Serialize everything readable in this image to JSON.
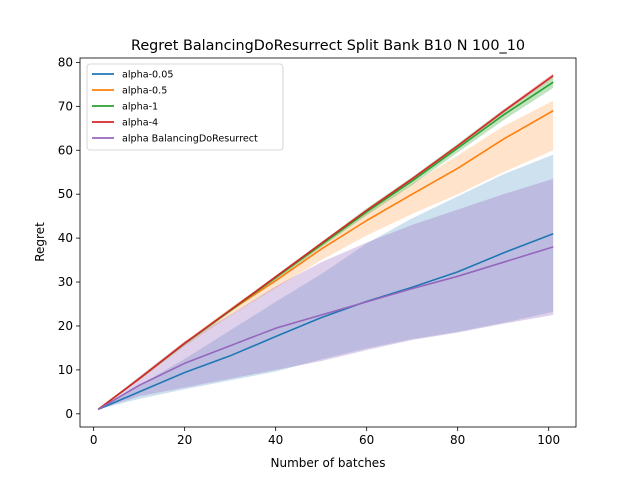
{
  "chart_data": {
    "type": "line",
    "title": "Regret BalancingDoResurrect Split Bank B10 N 100_10",
    "xlabel": "Number of batches",
    "ylabel": "Regret",
    "xlim": [
      -3.0,
      106.0
    ],
    "ylim": [
      -3.0,
      81.0
    ],
    "xticks": [
      0,
      20,
      40,
      60,
      80,
      100
    ],
    "yticks": [
      0,
      10,
      20,
      30,
      40,
      50,
      60,
      70,
      80
    ],
    "grid": false,
    "legend_position": "top-left",
    "series": [
      {
        "name": "alpha-0.05",
        "color": "#1f77b4",
        "band_opacity": 0.22,
        "x": [
          1,
          10,
          20,
          30,
          40,
          50,
          60,
          70,
          80,
          90,
          101
        ],
        "y": [
          1.0,
          5.0,
          9.4,
          13.2,
          17.6,
          21.9,
          25.6,
          28.8,
          32.3,
          36.6,
          41.0
        ],
        "lower": [
          1.0,
          3.4,
          5.6,
          7.6,
          9.6,
          12.4,
          14.9,
          17.0,
          18.7,
          20.7,
          23.2
        ],
        "upper": [
          1.0,
          6.5,
          12.5,
          19.0,
          25.5,
          31.8,
          38.8,
          44.5,
          49.5,
          54.5,
          59.0
        ]
      },
      {
        "name": "alpha-0.5",
        "color": "#ff7f0e",
        "band_opacity": 0.22,
        "x": [
          1,
          10,
          20,
          30,
          40,
          50,
          60,
          70,
          80,
          90,
          101
        ],
        "y": [
          1.0,
          8.0,
          16.0,
          23.5,
          30.3,
          37.5,
          44.0,
          50.0,
          55.9,
          62.5,
          69.0
        ],
        "lower": [
          1.0,
          7.6,
          15.4,
          22.3,
          28.6,
          35.0,
          40.6,
          45.5,
          50.0,
          55.0,
          60.0
        ],
        "upper": [
          1.0,
          8.3,
          16.5,
          24.1,
          31.2,
          38.6,
          45.8,
          52.4,
          58.8,
          65.4,
          71.3
        ]
      },
      {
        "name": "alpha-1",
        "color": "#2ca02c",
        "band_opacity": 0.3,
        "x": [
          1,
          10,
          20,
          30,
          40,
          50,
          60,
          70,
          80,
          90,
          101
        ],
        "y": [
          1.0,
          8.0,
          16.0,
          23.5,
          31.0,
          38.5,
          46.0,
          53.0,
          60.5,
          68.0,
          75.5
        ],
        "lower": [
          1.0,
          7.8,
          15.7,
          23.1,
          30.5,
          37.9,
          45.2,
          52.1,
          59.5,
          66.8,
          74.2
        ],
        "upper": [
          1.0,
          8.2,
          16.3,
          23.9,
          31.5,
          39.1,
          46.8,
          53.9,
          61.5,
          69.2,
          76.8
        ]
      },
      {
        "name": "alpha-4",
        "color": "#d62728",
        "band_opacity": 0.25,
        "x": [
          1,
          10,
          20,
          30,
          40,
          50,
          60,
          70,
          80,
          90,
          101
        ],
        "y": [
          1.0,
          8.0,
          16.1,
          23.6,
          31.2,
          38.8,
          46.3,
          53.5,
          61.0,
          68.8,
          77.0
        ],
        "lower": [
          1.0,
          7.9,
          16.0,
          23.5,
          31.0,
          38.6,
          46.0,
          53.2,
          60.7,
          68.4,
          76.5
        ],
        "upper": [
          1.0,
          8.1,
          16.2,
          23.7,
          31.4,
          39.0,
          46.6,
          53.8,
          61.3,
          69.2,
          77.5
        ]
      },
      {
        "name": "alpha BalancingDoResurrect",
        "color": "#9467bd",
        "band_opacity": 0.3,
        "x": [
          1,
          10,
          20,
          30,
          40,
          50,
          60,
          70,
          80,
          90,
          101
        ],
        "y": [
          1.0,
          6.5,
          11.5,
          15.5,
          19.5,
          22.5,
          25.5,
          28.5,
          31.3,
          34.5,
          38.0
        ],
        "lower": [
          1.0,
          4.0,
          6.0,
          8.0,
          10.0,
          12.0,
          14.5,
          16.8,
          18.5,
          20.5,
          22.5
        ],
        "upper": [
          1.0,
          8.5,
          16.5,
          22.5,
          29.0,
          34.5,
          39.0,
          43.0,
          46.5,
          50.0,
          53.5
        ]
      }
    ]
  }
}
